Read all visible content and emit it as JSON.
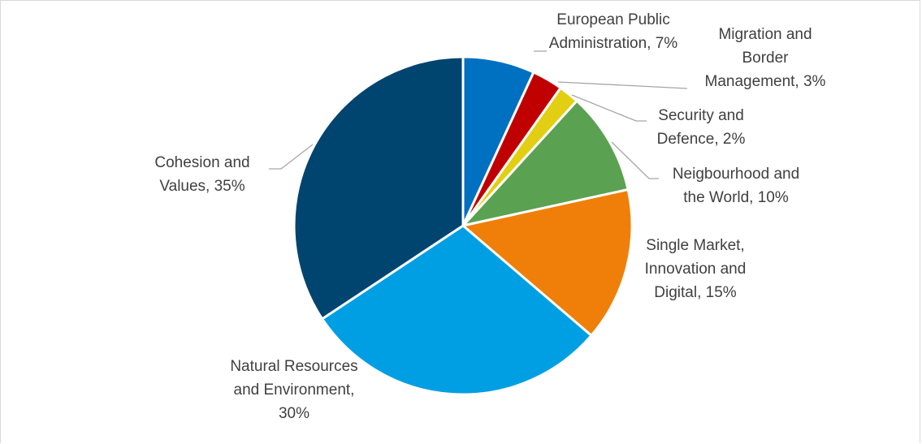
{
  "chart_data": {
    "type": "pie",
    "title": "",
    "legend": "none",
    "slices": [
      {
        "name": "European Public Administration",
        "value": 7,
        "color": "#0070c0",
        "label_lines": [
          "European Public",
          "Administration, 7%"
        ]
      },
      {
        "name": "Migration and Border Management",
        "value": 3,
        "color": "#c00000",
        "label_lines": [
          "Migration and",
          "Border",
          "Management, 3%"
        ]
      },
      {
        "name": "Security and Defence",
        "value": 2,
        "color": "#e2cf14",
        "label_lines": [
          "Security and",
          "Defence, 2%"
        ]
      },
      {
        "name": "Neigbourhood and the World",
        "value": 10,
        "color": "#5aa251",
        "label_lines": [
          "Neigbourhood and",
          "the World, 10%"
        ]
      },
      {
        "name": "Single Market, Innovation and Digital",
        "value": 15,
        "color": "#f07f09",
        "label_lines": [
          "Single Market,",
          "Innovation and",
          "Digital, 15%"
        ]
      },
      {
        "name": "Natural Resources and Environment",
        "value": 30,
        "color": "#009fe3",
        "label_lines": [
          "Natural Resources",
          "and Environment,",
          "30%"
        ]
      },
      {
        "name": "Cohesion and Values",
        "value": 35,
        "color": "#004470",
        "label_lines": [
          "Cohesion and",
          "Values, 35%"
        ]
      }
    ]
  }
}
